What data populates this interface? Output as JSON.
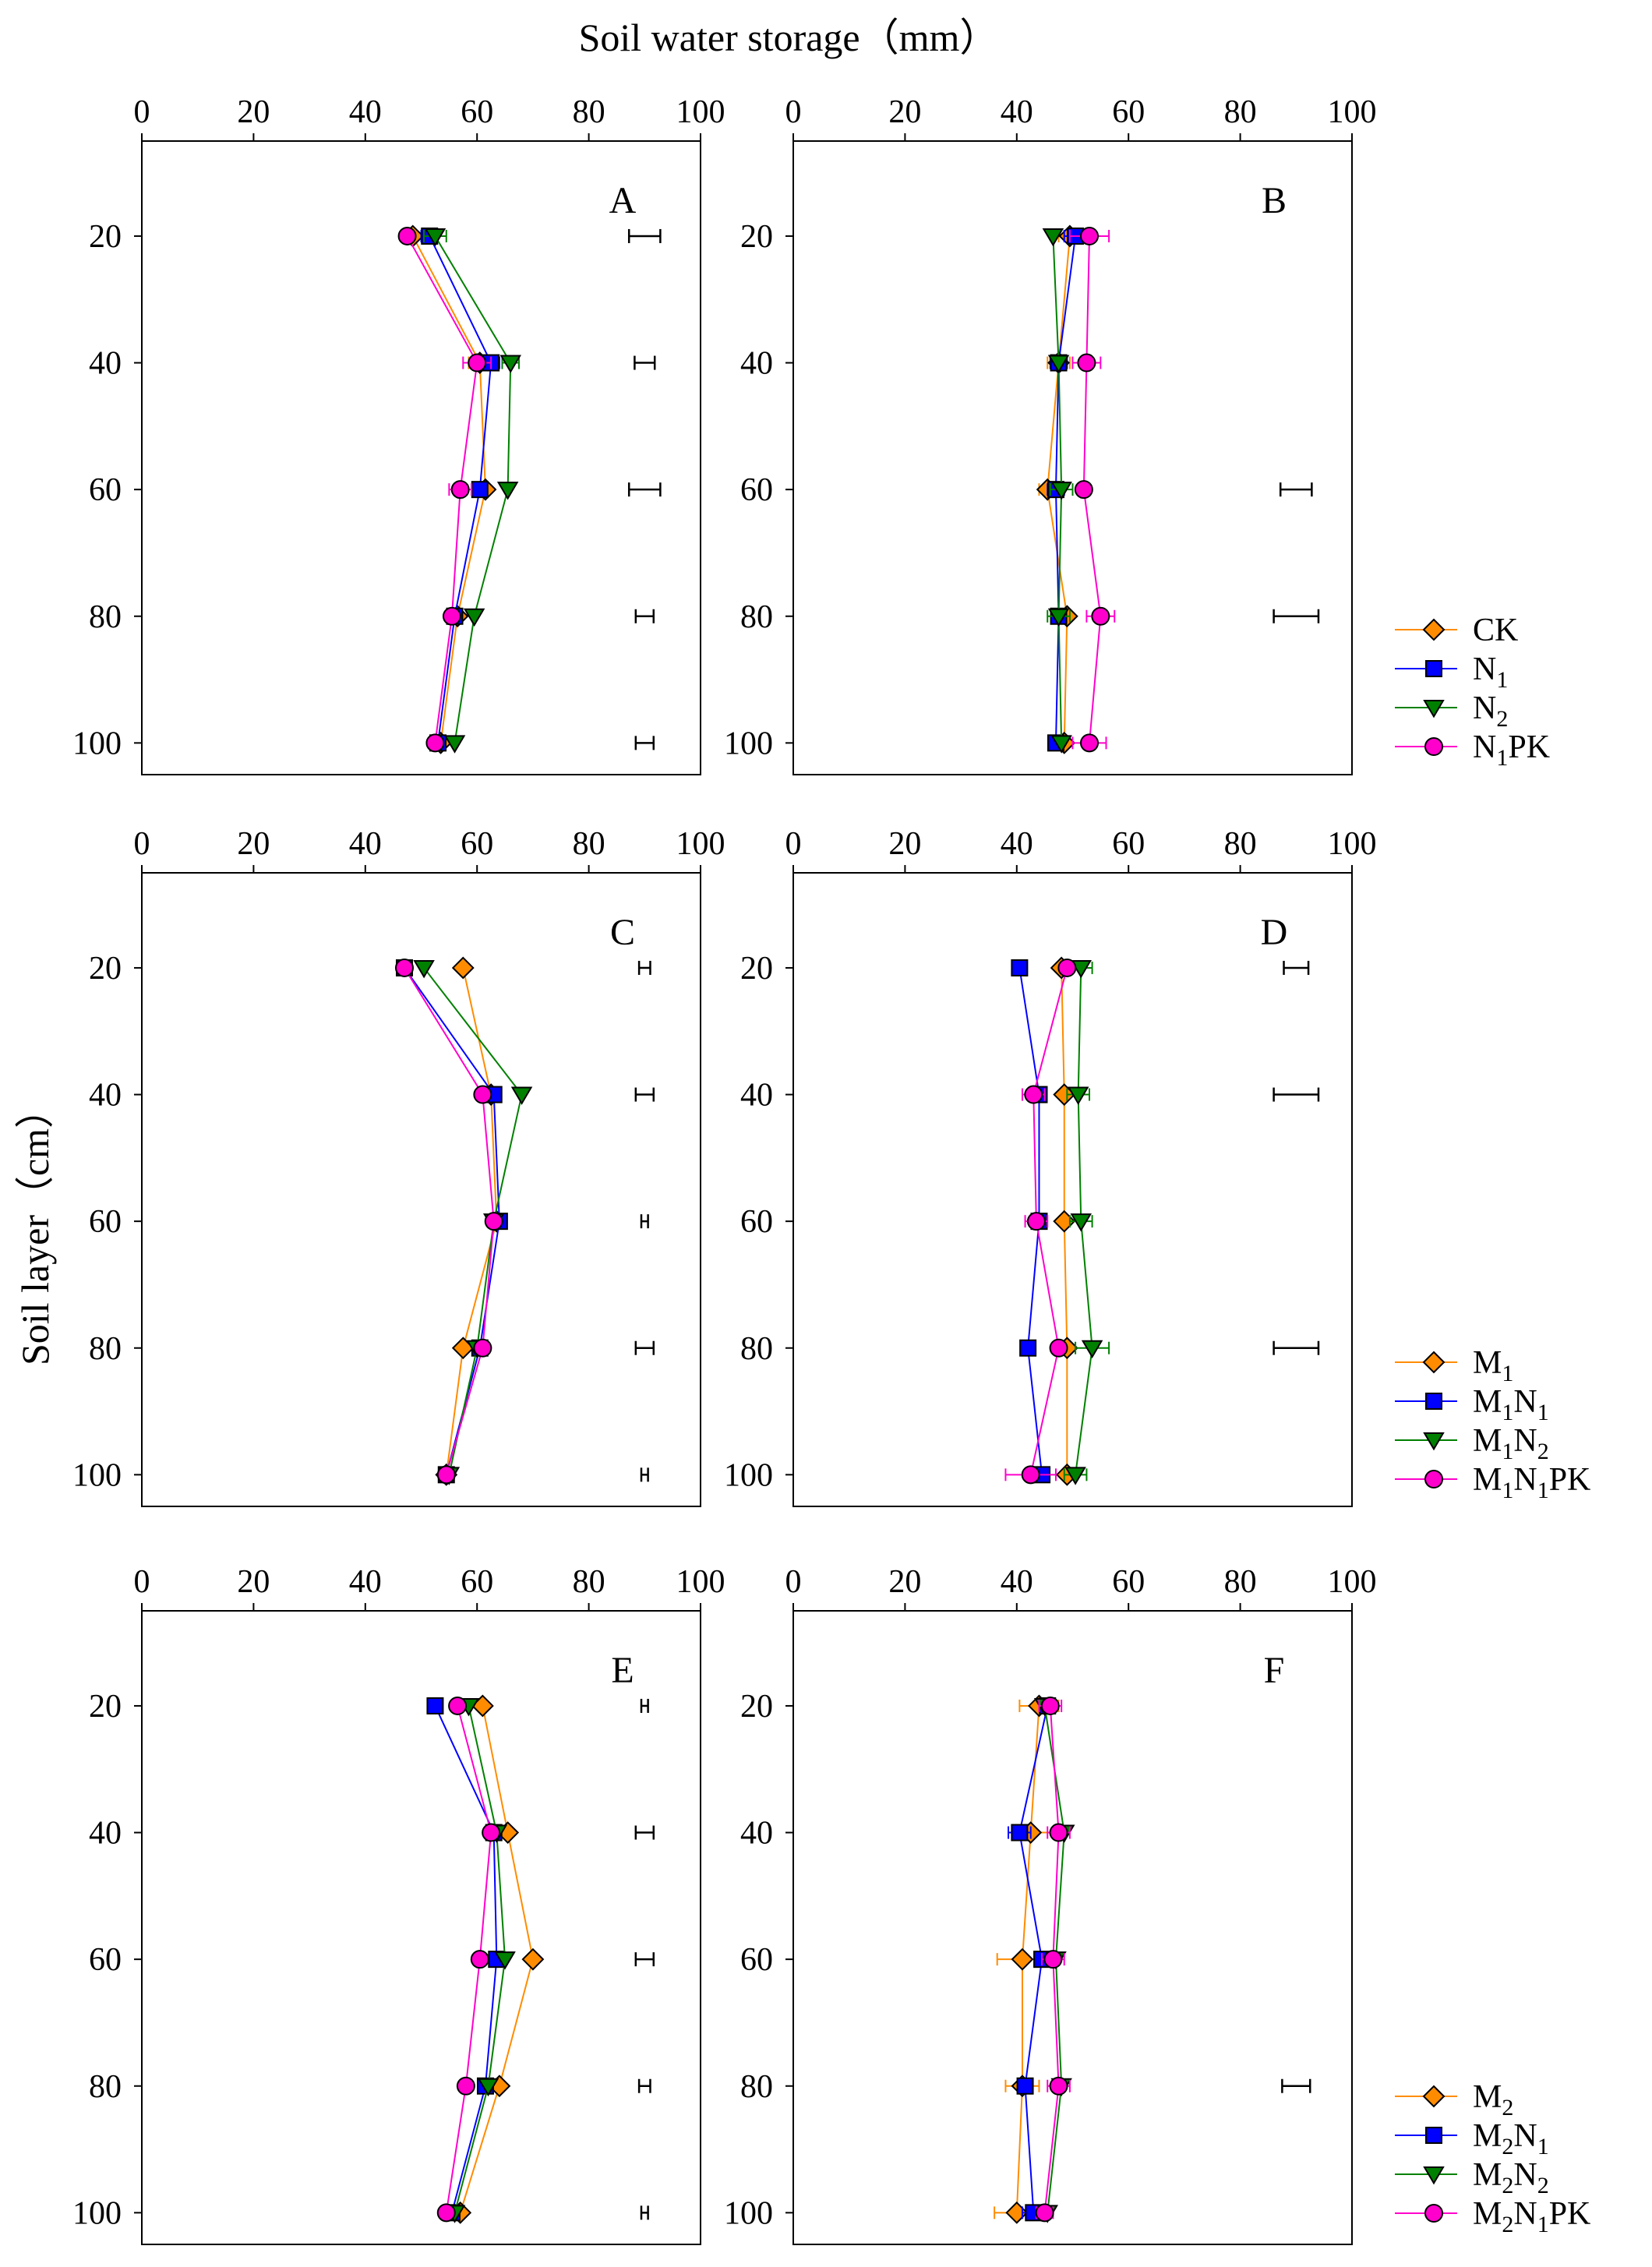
{
  "figure": {
    "x_axis_title": "Soil water storage（mm）",
    "y_axis_title": "Soil layer（cm）"
  },
  "colors": {
    "orange": "#FF8C00",
    "blue": "#0000FF",
    "green": "#008000",
    "magenta": "#FF00CC"
  },
  "legends": [
    {
      "group": "row1",
      "entries": [
        {
          "parts": [
            [
              "CK",
              "n"
            ]
          ],
          "color": "#FF8C00",
          "marker": "diamond"
        },
        {
          "parts": [
            [
              "N",
              "n"
            ],
            [
              "1",
              "s"
            ]
          ],
          "color": "#0000FF",
          "marker": "square"
        },
        {
          "parts": [
            [
              "N",
              "n"
            ],
            [
              "2",
              "s"
            ]
          ],
          "color": "#008000",
          "marker": "triangle"
        },
        {
          "parts": [
            [
              "N",
              "n"
            ],
            [
              "1",
              "s"
            ],
            [
              "PK",
              "n"
            ]
          ],
          "color": "#FF00CC",
          "marker": "circle"
        }
      ]
    },
    {
      "group": "row2",
      "entries": [
        {
          "parts": [
            [
              "M",
              "n"
            ],
            [
              "1",
              "s"
            ]
          ],
          "color": "#FF8C00",
          "marker": "diamond"
        },
        {
          "parts": [
            [
              "M",
              "n"
            ],
            [
              "1",
              "s"
            ],
            [
              "N",
              "n"
            ],
            [
              "1",
              "s"
            ]
          ],
          "color": "#0000FF",
          "marker": "square"
        },
        {
          "parts": [
            [
              "M",
              "n"
            ],
            [
              "1",
              "s"
            ],
            [
              "N",
              "n"
            ],
            [
              "2",
              "s"
            ]
          ],
          "color": "#008000",
          "marker": "triangle"
        },
        {
          "parts": [
            [
              "M",
              "n"
            ],
            [
              "1",
              "s"
            ],
            [
              "N",
              "n"
            ],
            [
              "1",
              "s"
            ],
            [
              "PK",
              "n"
            ]
          ],
          "color": "#FF00CC",
          "marker": "circle"
        }
      ]
    },
    {
      "group": "row3",
      "entries": [
        {
          "parts": [
            [
              "M",
              "n"
            ],
            [
              "2",
              "s"
            ]
          ],
          "color": "#FF8C00",
          "marker": "diamond"
        },
        {
          "parts": [
            [
              "M",
              "n"
            ],
            [
              "2",
              "s"
            ],
            [
              "N",
              "n"
            ],
            [
              "1",
              "s"
            ]
          ],
          "color": "#0000FF",
          "marker": "square"
        },
        {
          "parts": [
            [
              "M",
              "n"
            ],
            [
              "2",
              "s"
            ],
            [
              "N",
              "n"
            ],
            [
              "2",
              "s"
            ]
          ],
          "color": "#008000",
          "marker": "triangle"
        },
        {
          "parts": [
            [
              "M",
              "n"
            ],
            [
              "2",
              "s"
            ],
            [
              "N",
              "n"
            ],
            [
              "1",
              "s"
            ],
            [
              "PK",
              "n"
            ]
          ],
          "color": "#FF00CC",
          "marker": "circle"
        }
      ]
    }
  ],
  "chart_data": [
    {
      "panel": "A",
      "type": "line",
      "xlim": [
        0,
        100
      ],
      "ylim": [
        5,
        105
      ],
      "x_ticks": [
        0,
        20,
        40,
        60,
        80,
        100
      ],
      "y_ticks": [
        20,
        40,
        60,
        80,
        100
      ],
      "depths": [
        20,
        40,
        60,
        80,
        100
      ],
      "series": [
        {
          "name": "CK",
          "color": "#FF8C00",
          "marker": "diamond",
          "values": [
            48.5,
            60.5,
            61.5,
            56.5,
            53.5
          ],
          "errors": [
            0,
            2,
            0,
            0,
            0
          ]
        },
        {
          "name": "N1",
          "color": "#0000FF",
          "marker": "square",
          "values": [
            51.5,
            62.5,
            60.5,
            56,
            53
          ],
          "errors": [
            1.5,
            1.5,
            0,
            0,
            0
          ]
        },
        {
          "name": "N2",
          "color": "#008000",
          "marker": "triangle",
          "values": [
            52.5,
            66,
            65.5,
            59.5,
            56
          ],
          "errors": [
            2,
            1.5,
            0,
            0,
            0
          ]
        },
        {
          "name": "N1PK",
          "color": "#FF00CC",
          "marker": "circle",
          "values": [
            47.5,
            60,
            57,
            55.5,
            52.5
          ],
          "errors": [
            0,
            2.5,
            2,
            0,
            0
          ]
        }
      ],
      "lsd_bars": [
        {
          "depth": 20,
          "x": 90,
          "half": 2.8
        },
        {
          "depth": 40,
          "x": 90,
          "half": 1.8
        },
        {
          "depth": 60,
          "x": 90,
          "half": 2.8
        },
        {
          "depth": 80,
          "x": 90,
          "half": 1.6
        },
        {
          "depth": 100,
          "x": 90,
          "half": 1.6
        }
      ]
    },
    {
      "panel": "B",
      "type": "line",
      "xlim": [
        0,
        100
      ],
      "ylim": [
        5,
        105
      ],
      "x_ticks": [
        0,
        20,
        40,
        60,
        80,
        100
      ],
      "y_ticks": [
        20,
        40,
        60,
        80,
        100
      ],
      "depths": [
        20,
        40,
        60,
        80,
        100
      ],
      "series": [
        {
          "name": "CK",
          "color": "#FF8C00",
          "marker": "diamond",
          "values": [
            49.5,
            47.5,
            45.5,
            49,
            48.5
          ],
          "errors": [
            2,
            2,
            1.5,
            0,
            0
          ]
        },
        {
          "name": "N1",
          "color": "#0000FF",
          "marker": "square",
          "values": [
            50.5,
            47.5,
            47,
            47.5,
            47
          ],
          "errors": [
            2,
            1.5,
            1.5,
            0,
            0
          ]
        },
        {
          "name": "N2",
          "color": "#008000",
          "marker": "triangle",
          "values": [
            46.5,
            47.5,
            48,
            47.5,
            48
          ],
          "errors": [
            0,
            0,
            2,
            2,
            0
          ]
        },
        {
          "name": "N1PK",
          "color": "#FF00CC",
          "marker": "circle",
          "values": [
            53,
            52.5,
            52,
            55,
            53
          ],
          "errors": [
            3.5,
            2.5,
            0,
            2.5,
            3
          ]
        }
      ],
      "lsd_bars": [
        {
          "depth": 60,
          "x": 90,
          "half": 2.8
        },
        {
          "depth": 80,
          "x": 90,
          "half": 4
        }
      ]
    },
    {
      "panel": "C",
      "type": "line",
      "xlim": [
        0,
        100
      ],
      "ylim": [
        5,
        105
      ],
      "x_ticks": [
        0,
        20,
        40,
        60,
        80,
        100
      ],
      "y_ticks": [
        20,
        40,
        60,
        80,
        100
      ],
      "depths": [
        20,
        40,
        60,
        80,
        100
      ],
      "series": [
        {
          "name": "M1",
          "color": "#FF8C00",
          "marker": "diamond",
          "values": [
            57.5,
            62.5,
            63.5,
            57.5,
            54.5
          ],
          "errors": [
            0,
            0,
            0,
            0,
            0
          ]
        },
        {
          "name": "M1N1",
          "color": "#0000FF",
          "marker": "square",
          "values": [
            47,
            63,
            64,
            60.5,
            54.5
          ],
          "errors": [
            0,
            0,
            0,
            0,
            0
          ]
        },
        {
          "name": "M1N2",
          "color": "#008000",
          "marker": "triangle",
          "values": [
            50.5,
            68,
            63,
            60,
            55
          ],
          "errors": [
            0,
            0,
            0,
            0,
            0
          ]
        },
        {
          "name": "M1N1PK",
          "color": "#FF00CC",
          "marker": "circle",
          "values": [
            47,
            61,
            63,
            61,
            54.5
          ],
          "errors": [
            0,
            0,
            0,
            0,
            0
          ]
        }
      ],
      "lsd_bars": [
        {
          "depth": 20,
          "x": 90,
          "half": 1
        },
        {
          "depth": 40,
          "x": 90,
          "half": 1.6
        },
        {
          "depth": 60,
          "x": 90,
          "half": 0.6
        },
        {
          "depth": 80,
          "x": 90,
          "half": 1.6
        },
        {
          "depth": 100,
          "x": 90,
          "half": 0.6
        }
      ]
    },
    {
      "panel": "D",
      "type": "line",
      "xlim": [
        0,
        100
      ],
      "ylim": [
        5,
        105
      ],
      "x_ticks": [
        0,
        20,
        40,
        60,
        80,
        100
      ],
      "y_ticks": [
        20,
        40,
        60,
        80,
        100
      ],
      "depths": [
        20,
        40,
        60,
        80,
        100
      ],
      "series": [
        {
          "name": "M1",
          "color": "#FF8C00",
          "marker": "diamond",
          "values": [
            48,
            48.5,
            48.5,
            49,
            49
          ],
          "errors": [
            0,
            0,
            0,
            0,
            0
          ]
        },
        {
          "name": "M1N1",
          "color": "#0000FF",
          "marker": "square",
          "values": [
            40.5,
            44,
            44,
            42,
            44.5
          ],
          "errors": [
            0,
            0,
            0,
            0,
            0
          ]
        },
        {
          "name": "M1N2",
          "color": "#008000",
          "marker": "triangle",
          "values": [
            51.5,
            51,
            51.5,
            53.5,
            50.5
          ],
          "errors": [
            2,
            2,
            2,
            3,
            2
          ]
        },
        {
          "name": "M1N1PK",
          "color": "#FF00CC",
          "marker": "circle",
          "values": [
            49,
            43,
            43.5,
            47.5,
            42.5
          ],
          "errors": [
            0,
            2,
            2,
            0,
            4.5
          ]
        }
      ],
      "lsd_bars": [
        {
          "depth": 20,
          "x": 90,
          "half": 2.2
        },
        {
          "depth": 40,
          "x": 90,
          "half": 4
        },
        {
          "depth": 80,
          "x": 90,
          "half": 4
        }
      ]
    },
    {
      "panel": "E",
      "type": "line",
      "xlim": [
        0,
        100
      ],
      "ylim": [
        5,
        105
      ],
      "x_ticks": [
        0,
        20,
        40,
        60,
        80,
        100
      ],
      "y_ticks": [
        20,
        40,
        60,
        80,
        100
      ],
      "depths": [
        20,
        40,
        60,
        80,
        100
      ],
      "series": [
        {
          "name": "M2",
          "color": "#FF8C00",
          "marker": "diamond",
          "values": [
            61,
            65.5,
            70,
            64,
            57
          ],
          "errors": [
            0,
            0,
            0,
            0,
            0
          ]
        },
        {
          "name": "M2N1",
          "color": "#0000FF",
          "marker": "square",
          "values": [
            52.5,
            63,
            63.5,
            61.5,
            55.5
          ],
          "errors": [
            0,
            0,
            0,
            0,
            0
          ]
        },
        {
          "name": "M2N2",
          "color": "#008000",
          "marker": "triangle",
          "values": [
            58.5,
            63.5,
            65,
            62,
            56
          ],
          "errors": [
            0,
            0,
            0,
            0,
            0
          ]
        },
        {
          "name": "M2N1PK",
          "color": "#FF00CC",
          "marker": "circle",
          "values": [
            56.5,
            62.5,
            60.5,
            58,
            54.5
          ],
          "errors": [
            0,
            0,
            0,
            0,
            0
          ]
        }
      ],
      "lsd_bars": [
        {
          "depth": 20,
          "x": 90,
          "half": 0.6
        },
        {
          "depth": 40,
          "x": 90,
          "half": 1.6
        },
        {
          "depth": 60,
          "x": 90,
          "half": 1.6
        },
        {
          "depth": 80,
          "x": 90,
          "half": 1
        },
        {
          "depth": 100,
          "x": 90,
          "half": 0.6
        }
      ]
    },
    {
      "panel": "F",
      "type": "line",
      "xlim": [
        0,
        100
      ],
      "ylim": [
        5,
        105
      ],
      "x_ticks": [
        0,
        20,
        40,
        60,
        80,
        100
      ],
      "y_ticks": [
        20,
        40,
        60,
        80,
        100
      ],
      "depths": [
        20,
        40,
        60,
        80,
        100
      ],
      "series": [
        {
          "name": "M2",
          "color": "#FF8C00",
          "marker": "diamond",
          "values": [
            44,
            42.5,
            41,
            41,
            40
          ],
          "errors": [
            3.5,
            4,
            4.5,
            3,
            4
          ]
        },
        {
          "name": "M2N1",
          "color": "#0000FF",
          "marker": "square",
          "values": [
            45.5,
            40.5,
            44.5,
            41.5,
            43
          ],
          "errors": [
            1.5,
            2,
            0,
            0,
            2
          ]
        },
        {
          "name": "M2N2",
          "color": "#008000",
          "marker": "triangle",
          "values": [
            45,
            48.5,
            47,
            48,
            45.5
          ],
          "errors": [
            0,
            0,
            0,
            0,
            0
          ]
        },
        {
          "name": "M2N1PK",
          "color": "#FF00CC",
          "marker": "circle",
          "values": [
            46,
            47.5,
            46.5,
            47.5,
            45
          ],
          "errors": [
            2,
            2,
            2,
            2,
            1.5
          ]
        }
      ],
      "lsd_bars": [
        {
          "depth": 80,
          "x": 90,
          "half": 2.5
        }
      ]
    }
  ]
}
